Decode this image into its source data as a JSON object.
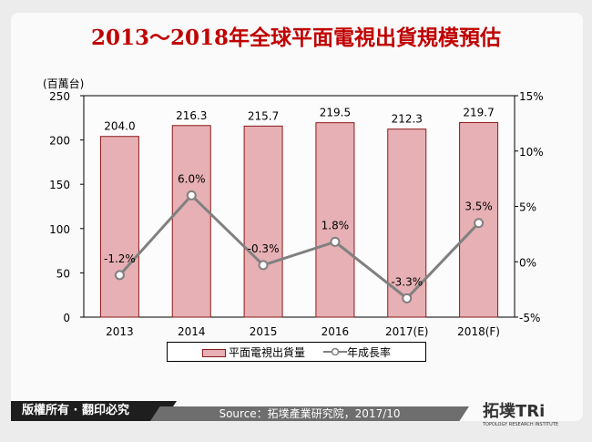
{
  "title": "2013～2018年全球平面電視出貨規模預估",
  "chart_data": {
    "type": "bar+line",
    "categories": [
      "2013",
      "2014",
      "2015",
      "2016",
      "2017(E)",
      "2018(F)"
    ],
    "series": [
      {
        "name": "平面電視出貨量",
        "type": "bar",
        "axis": "left",
        "values": [
          204.0,
          216.3,
          215.7,
          219.5,
          212.3,
          219.7
        ],
        "labels": [
          "204.0",
          "216.3",
          "215.7",
          "219.5",
          "212.3",
          "219.7"
        ],
        "color": "#e6b0b4"
      },
      {
        "name": "年成長率",
        "type": "line",
        "axis": "right",
        "values": [
          -1.2,
          6.0,
          -0.3,
          1.8,
          -3.3,
          3.5
        ],
        "labels": [
          "-1.2%",
          "6.0%",
          "-0.3%",
          "1.8%",
          "-3.3%",
          "3.5%"
        ],
        "color": "#808080"
      }
    ],
    "ylabel": "(百萬台)",
    "ylim": [
      0,
      250
    ],
    "yticks": [
      "0",
      "50",
      "100",
      "150",
      "200",
      "250"
    ],
    "y2lim": [
      -5,
      15
    ],
    "y2ticks": [
      "-5%",
      "0%",
      "5%",
      "10%",
      "15%"
    ],
    "grid": false,
    "legend": "bottom"
  },
  "footer": {
    "copyright": "版權所有 · 翻印必究",
    "source": "Source：拓墣產業研究院，2017/10",
    "logo": "拓墣TRi",
    "logo_sub": "TOPOLOGY RESEARCH INSTITUTE"
  }
}
